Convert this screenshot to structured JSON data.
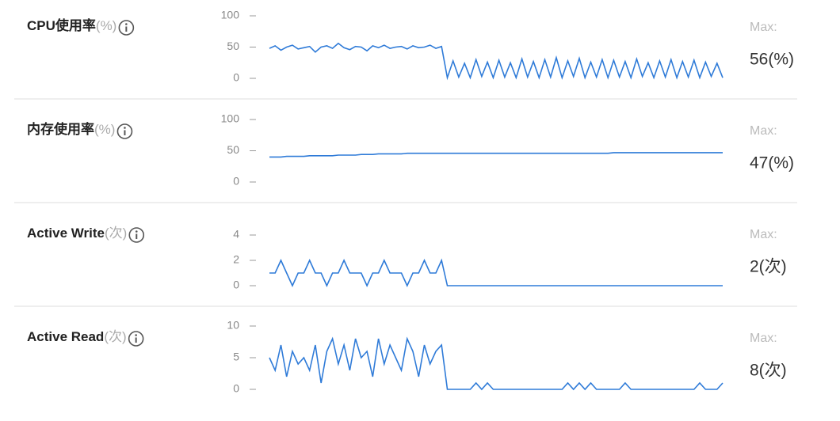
{
  "chart_data": [
    {
      "type": "line",
      "title": "CPU使用率",
      "unit": "(%)",
      "color": "#2f7bd8",
      "ylim": [
        0,
        100
      ],
      "yticks": [
        0,
        50,
        100
      ],
      "max_label": "Max:",
      "max_value": {
        "value": 56,
        "label": "56(%)"
      },
      "values": [
        48,
        52,
        45,
        50,
        53,
        47,
        49,
        51,
        42,
        50,
        52,
        48,
        56,
        49,
        46,
        51,
        50,
        44,
        52,
        49,
        53,
        48,
        50,
        51,
        47,
        52,
        49,
        50,
        53,
        48,
        51,
        1,
        28,
        2,
        24,
        1,
        30,
        3,
        26,
        1,
        29,
        2,
        25,
        1,
        31,
        2,
        27,
        1,
        30,
        2,
        33,
        1,
        28,
        3,
        32,
        1,
        26,
        2,
        30,
        1,
        29,
        2,
        27,
        1,
        31,
        3,
        25,
        1,
        28,
        2,
        30,
        1,
        27,
        2,
        29,
        1,
        26,
        3,
        24,
        1
      ]
    },
    {
      "type": "line",
      "title": "内存使用率",
      "unit": "(%)",
      "color": "#2f7bd8",
      "ylim": [
        0,
        100
      ],
      "yticks": [
        0,
        50,
        100
      ],
      "max_label": "Max:",
      "max_value": {
        "value": 47,
        "label": "47(%)"
      },
      "values": [
        40,
        40,
        40,
        41,
        41,
        41,
        41,
        42,
        42,
        42,
        42,
        42,
        43,
        43,
        43,
        43,
        44,
        44,
        44,
        45,
        45,
        45,
        45,
        45,
        46,
        46,
        46,
        46,
        46,
        46,
        46,
        46,
        46,
        46,
        46,
        46,
        46,
        46,
        46,
        46,
        46,
        46,
        46,
        46,
        46,
        46,
        46,
        46,
        46,
        46,
        46,
        46,
        46,
        46,
        46,
        46,
        46,
        46,
        46,
        46,
        47,
        47,
        47,
        47,
        47,
        47,
        47,
        47,
        47,
        47,
        47,
        47,
        47,
        47,
        47,
        47,
        47,
        47,
        47,
        47
      ]
    },
    {
      "type": "line",
      "title": "Active Write",
      "unit": "(次)",
      "color": "#2f7bd8",
      "ylim": [
        0,
        4
      ],
      "yticks": [
        0,
        2,
        4
      ],
      "max_label": "Max:",
      "max_value": {
        "value": 2,
        "label": "2(次)"
      },
      "values": [
        1,
        1,
        2,
        1,
        0,
        1,
        1,
        2,
        1,
        1,
        0,
        1,
        1,
        2,
        1,
        1,
        1,
        0,
        1,
        1,
        2,
        1,
        1,
        1,
        0,
        1,
        1,
        2,
        1,
        1,
        2,
        0,
        0,
        0,
        0,
        0,
        0,
        0,
        0,
        0,
        0,
        0,
        0,
        0,
        0,
        0,
        0,
        0,
        0,
        0,
        0,
        0,
        0,
        0,
        0,
        0,
        0,
        0,
        0,
        0,
        0,
        0,
        0,
        0,
        0,
        0,
        0,
        0,
        0,
        0,
        0,
        0,
        0,
        0,
        0,
        0,
        0,
        0,
        0,
        0
      ]
    },
    {
      "type": "line",
      "title": "Active Read",
      "unit": "(次)",
      "color": "#2f7bd8",
      "ylim": [
        0,
        10
      ],
      "yticks": [
        0,
        5,
        10
      ],
      "max_label": "Max:",
      "max_value": {
        "value": 8,
        "label": "8(次)"
      },
      "values": [
        5,
        3,
        7,
        2,
        6,
        4,
        5,
        3,
        7,
        1,
        6,
        8,
        4,
        7,
        3,
        8,
        5,
        6,
        2,
        8,
        4,
        7,
        5,
        3,
        8,
        6,
        2,
        7,
        4,
        6,
        7,
        0,
        0,
        0,
        0,
        0,
        1,
        0,
        1,
        0,
        0,
        0,
        0,
        0,
        0,
        0,
        0,
        0,
        0,
        0,
        0,
        0,
        1,
        0,
        1,
        0,
        1,
        0,
        0,
        0,
        0,
        0,
        1,
        0,
        0,
        0,
        0,
        0,
        0,
        0,
        0,
        0,
        0,
        0,
        0,
        1,
        0,
        0,
        0,
        1
      ]
    }
  ]
}
